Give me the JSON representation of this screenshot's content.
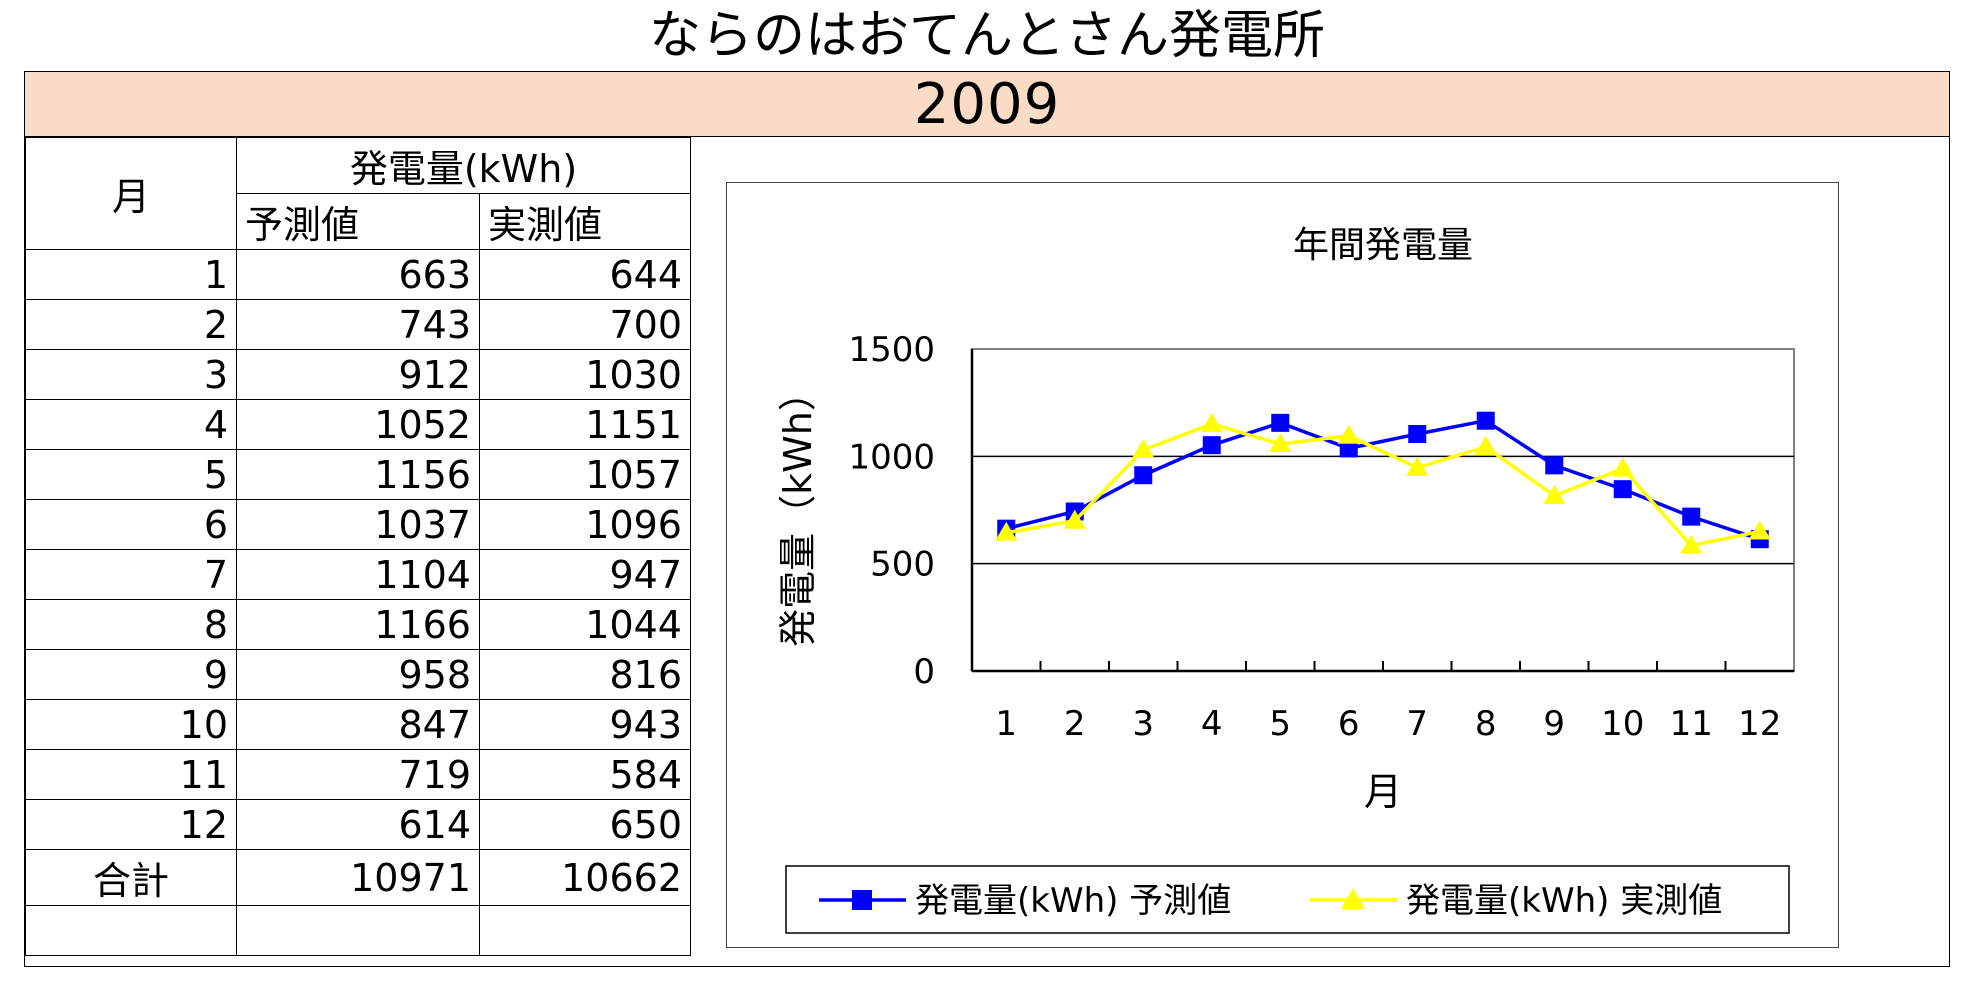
{
  "title": "ならのはおてんとさん発電所",
  "year": "2009",
  "table": {
    "month_header": "月",
    "group_header": "発電量(kWh)",
    "col_predicted": "予測値",
    "col_actual": "実測値",
    "rows": [
      {
        "month": "1",
        "predicted": "663",
        "actual": "644"
      },
      {
        "month": "2",
        "predicted": "743",
        "actual": "700"
      },
      {
        "month": "3",
        "predicted": "912",
        "actual": "1030"
      },
      {
        "month": "4",
        "predicted": "1052",
        "actual": "1151"
      },
      {
        "month": "5",
        "predicted": "1156",
        "actual": "1057"
      },
      {
        "month": "6",
        "predicted": "1037",
        "actual": "1096"
      },
      {
        "month": "7",
        "predicted": "1104",
        "actual": "947"
      },
      {
        "month": "8",
        "predicted": "1166",
        "actual": "1044"
      },
      {
        "month": "9",
        "predicted": "958",
        "actual": "816"
      },
      {
        "month": "10",
        "predicted": "847",
        "actual": "943"
      },
      {
        "month": "11",
        "predicted": "719",
        "actual": "584"
      },
      {
        "month": "12",
        "predicted": "614",
        "actual": "650"
      }
    ],
    "total_label": "合計",
    "total_predicted": "10971",
    "total_actual": "10662"
  },
  "chart_data": {
    "type": "line",
    "title": "年間発電量",
    "xlabel": "月",
    "ylabel": "発電量（kWh）",
    "categories": [
      "1",
      "2",
      "3",
      "4",
      "5",
      "6",
      "7",
      "8",
      "9",
      "10",
      "11",
      "12"
    ],
    "ylim": [
      0,
      1500
    ],
    "yticks": [
      0,
      500,
      1000,
      1500
    ],
    "grid": true,
    "legend_position": "bottom",
    "series": [
      {
        "name": "発電量(kWh) 予測値",
        "color": "#0000ff",
        "marker": "square",
        "values": [
          663,
          743,
          912,
          1052,
          1156,
          1037,
          1104,
          1166,
          958,
          847,
          719,
          614
        ]
      },
      {
        "name": "発電量(kWh) 実測値",
        "color": "#ffff00",
        "marker": "triangle",
        "values": [
          644,
          700,
          1030,
          1151,
          1057,
          1096,
          947,
          1044,
          816,
          943,
          584,
          650
        ]
      }
    ]
  }
}
